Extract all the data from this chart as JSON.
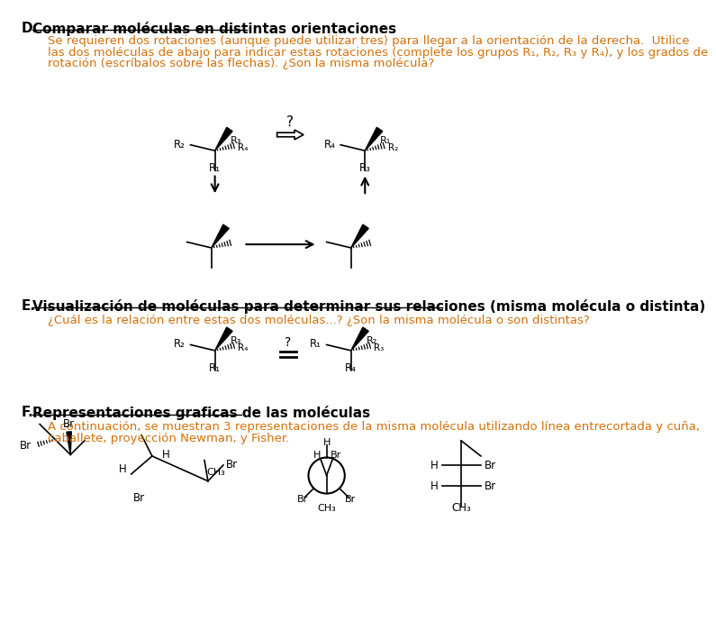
{
  "title_d": "D.",
  "heading_d": "Comparar moléculas en distintas orientaciones",
  "text_d_1": "Se requieren dos rotaciones (aunque puede utilizar tres) para llegar a la orientación de la derecha.  Utilice",
  "text_d_2": "las dos moléculas de abajo para indicar estas rotaciones (complete los grupos R₁, R₂, R₃ y R₄), y los grados de",
  "text_d_3": "rotación (escríbalos sobre las flechas). ¿Son la misma molécula?",
  "title_e": "E.",
  "heading_e": "Visualización de moléculas para determinar sus relaciones (misma molécula o distinta)",
  "text_e": "¿Cuál es la relación entre estas dos moléculas...? ¿Son la misma molécula o son distintas?",
  "title_f": "F.",
  "heading_f": "Representaciones graficas de las moléculas",
  "text_f_1": "A continuación, se muestran 3 representaciones de la misma molécula utilizando línea entrecortada y cuña,",
  "text_f_2": "caballete, proyección Newman, y Fisher.",
  "text_color": "#d4700a",
  "black": "#000000",
  "bg": "#ffffff"
}
